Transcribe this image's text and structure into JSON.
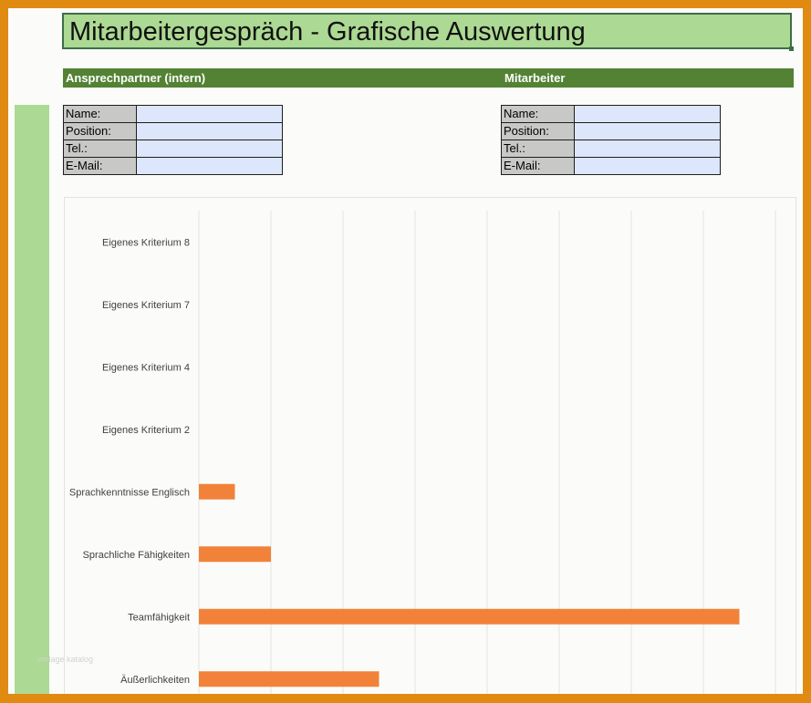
{
  "title": "Mitarbeitergespräch - Grafische Auswertung",
  "sections": {
    "left_label": "Ansprechpartner (intern)",
    "right_label": "Mitarbeiter"
  },
  "internal_contact": {
    "fields": [
      {
        "label": "Name:",
        "value": ""
      },
      {
        "label": "Position:",
        "value": ""
      },
      {
        "label": "Tel.:",
        "value": ""
      },
      {
        "label": "E-Mail:",
        "value": ""
      }
    ]
  },
  "employee": {
    "fields": [
      {
        "label": "Name:",
        "value": ""
      },
      {
        "label": "Position:",
        "value": ""
      },
      {
        "label": "Tel.:",
        "value": ""
      },
      {
        "label": "E-Mail:",
        "value": ""
      }
    ]
  },
  "watermark": "vorlage katalog",
  "colors": {
    "frame": "#e08a12",
    "title_bg": "#acd993",
    "section_bar": "#538234",
    "bar": "#f2823a",
    "label_cell": "#c8c9c6",
    "value_cell": "#dde7fb"
  },
  "chart_data": {
    "type": "bar",
    "orientation": "horizontal",
    "categories": [
      "Eigenes Kriterium 8",
      "Eigenes Kriterium 7",
      "Eigenes Kriterium 4",
      "Eigenes Kriterium 2",
      "Sprachkenntnisse Englisch",
      "Sprachliche Fähigkeiten",
      "Teamfähigkeit",
      "Äußerlichkeiten"
    ],
    "values": [
      0,
      0,
      0,
      0,
      0.5,
      1,
      7.5,
      2.5
    ],
    "xlim": [
      0,
      8
    ],
    "grid": true,
    "x_tick_labels_visible": false
  }
}
